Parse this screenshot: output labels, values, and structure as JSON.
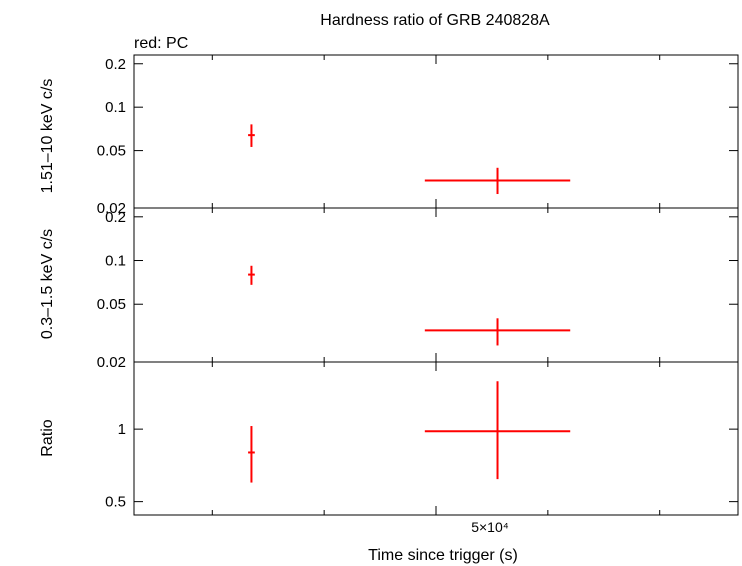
{
  "title": "Hardness ratio of GRB 240828A",
  "legend": "red: PC",
  "xlabel": "Time since trigger (s)",
  "xtick_label": "5×10⁴",
  "chart_data": [
    {
      "type": "scatter",
      "panel": "hard",
      "ylabel": "1.51–10 keV c/s",
      "yscale": "log",
      "ylim": [
        0.02,
        0.23
      ],
      "yticks": [
        0.02,
        0.05,
        0.1,
        0.2
      ],
      "ytick_labels": [
        "0.02",
        "0.05",
        "0.1",
        "0.2"
      ],
      "color": "#ff0000",
      "points": [
        {
          "x": 33500,
          "xlo": 33200,
          "xhi": 33800,
          "y": 0.064,
          "ylo": 0.053,
          "yhi": 0.076
        },
        {
          "x": 55500,
          "xlo": 49000,
          "xhi": 62000,
          "y": 0.031,
          "ylo": 0.025,
          "yhi": 0.038
        }
      ]
    },
    {
      "type": "scatter",
      "panel": "soft",
      "ylabel": "0.3–1.5 keV c/s",
      "yscale": "log",
      "ylim": [
        0.02,
        0.23
      ],
      "yticks": [
        0.02,
        0.05,
        0.1,
        0.2
      ],
      "ytick_labels": [
        "0.02",
        "0.05",
        "0.1",
        "0.2"
      ],
      "color": "#ff0000",
      "points": [
        {
          "x": 33500,
          "xlo": 33200,
          "xhi": 33800,
          "y": 0.08,
          "ylo": 0.068,
          "yhi": 0.092
        },
        {
          "x": 55500,
          "xlo": 49000,
          "xhi": 62000,
          "y": 0.033,
          "ylo": 0.026,
          "yhi": 0.04
        }
      ]
    },
    {
      "type": "scatter",
      "panel": "ratio",
      "ylabel": "Ratio",
      "yscale": "log",
      "ylim": [
        0.44,
        1.9
      ],
      "yticks": [
        0.5,
        1
      ],
      "ytick_labels": [
        "0.5",
        "1"
      ],
      "color": "#ff0000",
      "points": [
        {
          "x": 33500,
          "xlo": 33200,
          "xhi": 33800,
          "y": 0.8,
          "ylo": 0.6,
          "yhi": 1.03
        },
        {
          "x": 55500,
          "xlo": 49000,
          "xhi": 62000,
          "y": 0.98,
          "ylo": 0.62,
          "yhi": 1.58
        }
      ]
    }
  ],
  "x_axis": {
    "scale": "linear",
    "xlim": [
      23000,
      77000
    ],
    "major_ticks": [
      50000
    ],
    "minor_ticks": [
      30000,
      40000,
      60000,
      70000
    ]
  }
}
